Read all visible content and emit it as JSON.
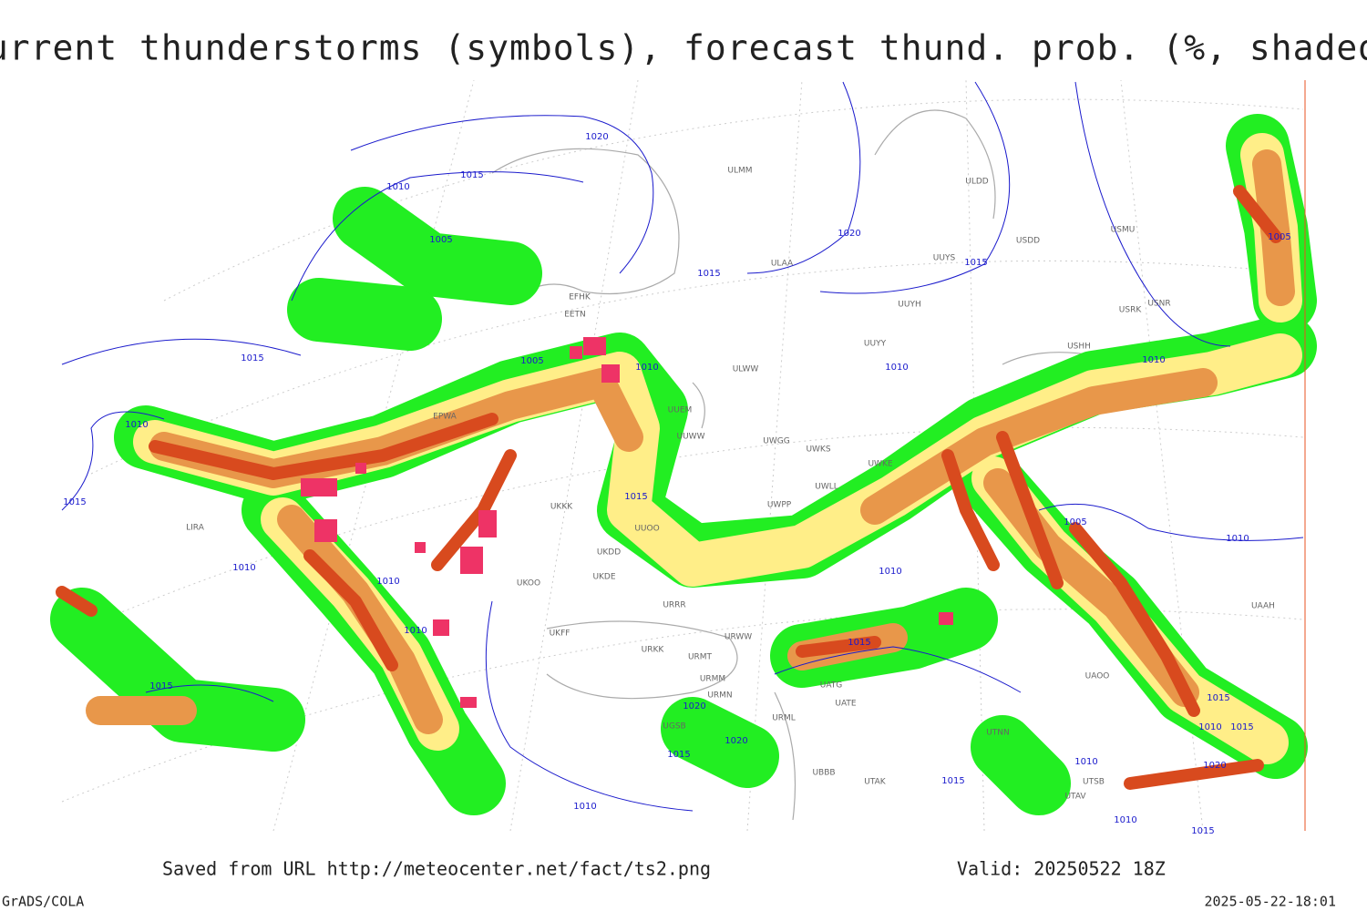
{
  "header": {
    "title": "Current thunderstorms (symbols), forecast thund. prob. (%, shaded)"
  },
  "map": {
    "isobar_labels": [
      "1020",
      "1015",
      "1010",
      "1005",
      "1020",
      "1015",
      "1015",
      "1015",
      "1005",
      "1010",
      "1010",
      "1010",
      "1005",
      "1010",
      "1015",
      "1015",
      "1005",
      "1010",
      "1010",
      "1010",
      "1010",
      "1010",
      "1015",
      "1015",
      "1020",
      "1020",
      "1015",
      "1015",
      "1010",
      "1015",
      "1020",
      "1010",
      "1015",
      "1010",
      "1010",
      "1015"
    ],
    "stations": [
      "ULMM",
      "ULDD",
      "USDD",
      "USMU",
      "ULAA",
      "UUYS",
      "EFHK",
      "EETN",
      "UUYH",
      "USRK",
      "USNR",
      "UUYY",
      "ULWW",
      "UUEM",
      "EPWA",
      "UUWW",
      "UWGG",
      "UWKS",
      "UWKE",
      "UUOO",
      "UKKK",
      "UKDD",
      "UKDE",
      "UKOO",
      "URRR",
      "UKFF",
      "URKK",
      "URMT",
      "URMM",
      "URMN",
      "UGSB",
      "URWW",
      "UATG",
      "UATE",
      "URML",
      "UBBB",
      "UTAK",
      "UTNN",
      "UTSB",
      "UTAV",
      "LIRA",
      "USHH",
      "UAOO",
      "UAAH",
      "UWPP",
      "UWLL"
    ]
  },
  "footer": {
    "source": "Saved from URL http://meteocenter.net/fact/ts2.png",
    "valid": "Valid: 20250522 18Z",
    "credit": "GrADS/COLA",
    "timestamp": "2025-05-22-18:01"
  }
}
